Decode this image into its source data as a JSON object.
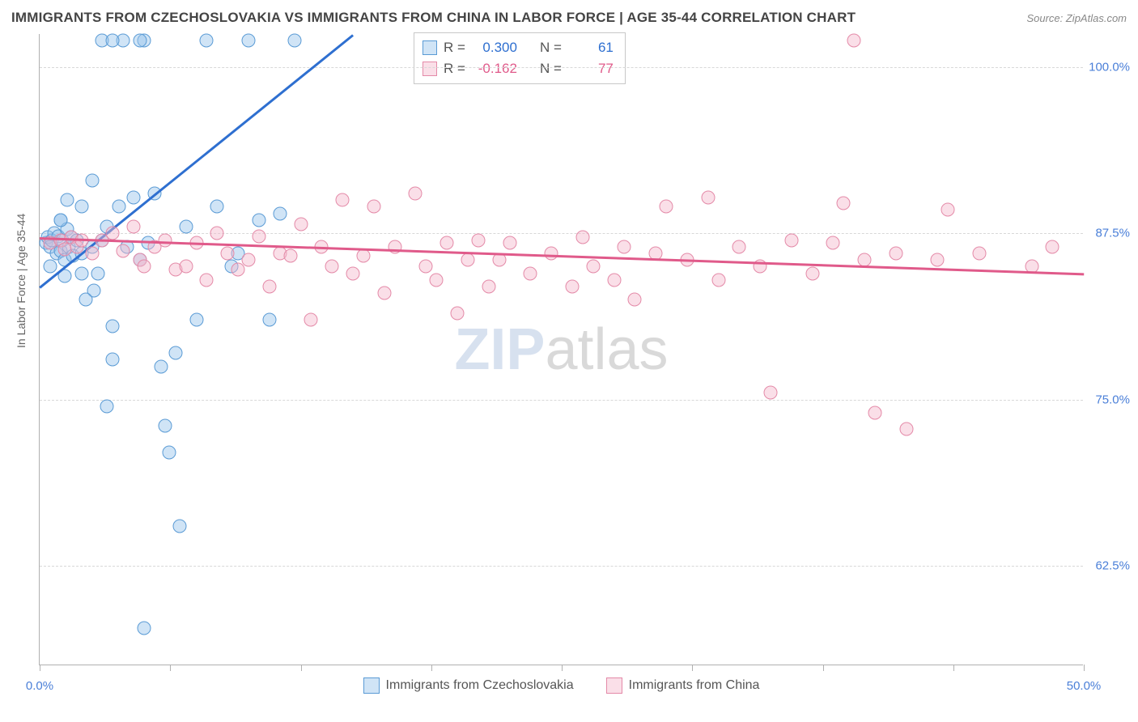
{
  "title": "IMMIGRANTS FROM CZECHOSLOVAKIA VS IMMIGRANTS FROM CHINA IN LABOR FORCE | AGE 35-44 CORRELATION CHART",
  "source": "Source: ZipAtlas.com",
  "yaxis_title": "In Labor Force | Age 35-44",
  "watermark_zip": "ZIP",
  "watermark_atlas": "atlas",
  "chart": {
    "type": "scatter",
    "xlim": [
      0,
      50
    ],
    "ylim": [
      55,
      102.5
    ],
    "yticks": [
      62.5,
      75.0,
      87.5,
      100.0
    ],
    "ytick_labels": [
      "62.5%",
      "75.0%",
      "87.5%",
      "100.0%"
    ],
    "xticks": [
      0,
      6.25,
      12.5,
      18.75,
      25,
      31.25,
      37.5,
      43.75,
      50
    ],
    "xtick_labels_visible": {
      "0": "0.0%",
      "50": "50.0%"
    },
    "background": "#ffffff",
    "grid_color": "#d8d8d8",
    "axis_color": "#b0b0b0",
    "tick_label_color": "#4a7fd8",
    "point_radius": 8.5,
    "point_border_width": 1.2,
    "series": [
      {
        "name": "Immigrants from Czechoslovakia",
        "fill": "rgba(150,195,235,0.45)",
        "stroke": "#5a9bd5",
        "trend_color": "#2e6fd0",
        "trend_width": 2.5,
        "R": "0.300",
        "N": "61",
        "trend": {
          "x1": 0,
          "y1": 83.5,
          "x2": 15,
          "y2": 102.5
        },
        "points": [
          [
            0.3,
            86.8
          ],
          [
            0.4,
            87.2
          ],
          [
            0.5,
            86.5
          ],
          [
            0.6,
            87.0
          ],
          [
            0.5,
            85.0
          ],
          [
            0.7,
            87.5
          ],
          [
            0.8,
            86.0
          ],
          [
            0.9,
            87.3
          ],
          [
            1.0,
            88.5
          ],
          [
            1.0,
            86.2
          ],
          [
            1.1,
            87.0
          ],
          [
            1.2,
            85.5
          ],
          [
            1.2,
            84.3
          ],
          [
            1.3,
            87.8
          ],
          [
            1.4,
            86.5
          ],
          [
            1.5,
            87.2
          ],
          [
            1.6,
            85.8
          ],
          [
            1.3,
            90.0
          ],
          [
            1.8,
            87.0
          ],
          [
            2.0,
            86.0
          ],
          [
            2.0,
            84.5
          ],
          [
            2.0,
            89.5
          ],
          [
            2.5,
            91.5
          ],
          [
            2.5,
            86.5
          ],
          [
            2.6,
            83.2
          ],
          [
            2.8,
            84.5
          ],
          [
            3.0,
            87.0
          ],
          [
            3.0,
            102.0
          ],
          [
            3.2,
            88.0
          ],
          [
            3.5,
            80.5
          ],
          [
            3.5,
            78.0
          ],
          [
            3.8,
            89.5
          ],
          [
            4.0,
            102.0
          ],
          [
            4.2,
            86.5
          ],
          [
            4.5,
            90.2
          ],
          [
            4.8,
            85.5
          ],
          [
            5.0,
            102.0
          ],
          [
            5.2,
            86.8
          ],
          [
            5.5,
            90.5
          ],
          [
            5.8,
            77.5
          ],
          [
            6.0,
            73.0
          ],
          [
            6.2,
            71.0
          ],
          [
            6.5,
            78.5
          ],
          [
            6.7,
            65.5
          ],
          [
            7.0,
            88.0
          ],
          [
            7.5,
            81.0
          ],
          [
            8.0,
            102.0
          ],
          [
            8.5,
            89.5
          ],
          [
            3.5,
            102.0
          ],
          [
            9.2,
            85.0
          ],
          [
            9.5,
            86.0
          ],
          [
            10.0,
            102.0
          ],
          [
            10.5,
            88.5
          ],
          [
            11.0,
            81.0
          ],
          [
            11.5,
            89.0
          ],
          [
            12.2,
            102.0
          ],
          [
            5.0,
            57.8
          ],
          [
            4.8,
            102.0
          ],
          [
            3.2,
            74.5
          ],
          [
            2.2,
            82.5
          ],
          [
            1.0,
            88.5
          ]
        ]
      },
      {
        "name": "Immigrants from China",
        "fill": "rgba(245,185,205,0.45)",
        "stroke": "#e48aa8",
        "trend_color": "#e05a8a",
        "trend_width": 2.5,
        "R": "-0.162",
        "N": "77",
        "trend": {
          "x1": 0,
          "y1": 87.2,
          "x2": 50,
          "y2": 84.5
        },
        "points": [
          [
            0.5,
            86.8
          ],
          [
            1.0,
            87.0
          ],
          [
            1.2,
            86.3
          ],
          [
            1.5,
            87.2
          ],
          [
            1.8,
            86.5
          ],
          [
            2.0,
            87.0
          ],
          [
            2.5,
            86.0
          ],
          [
            3.0,
            87.0
          ],
          [
            3.5,
            87.5
          ],
          [
            4.0,
            86.2
          ],
          [
            4.5,
            88.0
          ],
          [
            4.8,
            85.5
          ],
          [
            5.0,
            85.0
          ],
          [
            5.5,
            86.5
          ],
          [
            6.0,
            87.0
          ],
          [
            6.5,
            84.8
          ],
          [
            7.0,
            85.0
          ],
          [
            7.5,
            86.8
          ],
          [
            8.0,
            84.0
          ],
          [
            8.5,
            87.5
          ],
          [
            9.0,
            86.0
          ],
          [
            9.5,
            84.8
          ],
          [
            10.0,
            85.5
          ],
          [
            10.5,
            87.3
          ],
          [
            11.0,
            83.5
          ],
          [
            11.5,
            86.0
          ],
          [
            12.0,
            85.8
          ],
          [
            12.5,
            88.2
          ],
          [
            13.0,
            81.0
          ],
          [
            13.5,
            86.5
          ],
          [
            14.0,
            85.0
          ],
          [
            14.5,
            90.0
          ],
          [
            15.0,
            84.5
          ],
          [
            15.5,
            85.8
          ],
          [
            16.0,
            89.5
          ],
          [
            16.5,
            83.0
          ],
          [
            17.0,
            86.5
          ],
          [
            18.0,
            90.5
          ],
          [
            18.5,
            85.0
          ],
          [
            19.0,
            84.0
          ],
          [
            19.5,
            86.8
          ],
          [
            20.0,
            81.5
          ],
          [
            20.5,
            85.5
          ],
          [
            21.0,
            87.0
          ],
          [
            21.5,
            83.5
          ],
          [
            22.0,
            85.5
          ],
          [
            22.5,
            86.8
          ],
          [
            23.5,
            84.5
          ],
          [
            24.5,
            86.0
          ],
          [
            25.5,
            83.5
          ],
          [
            26.0,
            87.2
          ],
          [
            26.5,
            85.0
          ],
          [
            27.5,
            84.0
          ],
          [
            28.0,
            86.5
          ],
          [
            28.5,
            82.5
          ],
          [
            29.5,
            86.0
          ],
          [
            30.0,
            89.5
          ],
          [
            31.0,
            85.5
          ],
          [
            32.0,
            90.2
          ],
          [
            32.5,
            84.0
          ],
          [
            33.5,
            86.5
          ],
          [
            34.5,
            85.0
          ],
          [
            35.0,
            75.5
          ],
          [
            36.0,
            87.0
          ],
          [
            37.0,
            84.5
          ],
          [
            38.0,
            86.8
          ],
          [
            38.5,
            89.8
          ],
          [
            39.0,
            102.0
          ],
          [
            39.5,
            85.5
          ],
          [
            40.0,
            74.0
          ],
          [
            41.0,
            86.0
          ],
          [
            41.5,
            72.8
          ],
          [
            43.0,
            85.5
          ],
          [
            43.5,
            89.3
          ],
          [
            45.0,
            86.0
          ],
          [
            47.5,
            85.0
          ],
          [
            48.5,
            86.5
          ]
        ]
      }
    ]
  },
  "stats_labels": {
    "R": "R =",
    "N": "N ="
  },
  "legend_labels": [
    "Immigrants from Czechoslovakia",
    "Immigrants from China"
  ]
}
